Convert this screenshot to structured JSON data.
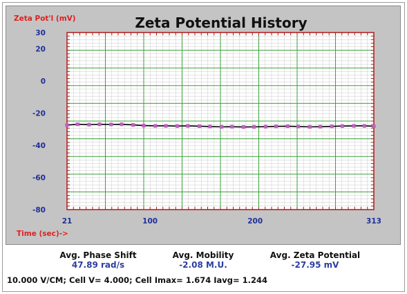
{
  "chart_data": {
    "type": "line",
    "title": "Zeta Potential History",
    "ylabel": "Zeta Pot'l (mV)",
    "xlabel": "Time (sec)->",
    "xlim": [
      21,
      313
    ],
    "ylim": [
      -80,
      30
    ],
    "x_ticks": [
      "21",
      "100",
      "200",
      "313"
    ],
    "y_ticks": [
      "30",
      "20",
      "0",
      "-20",
      "-40",
      "-60",
      "-80"
    ],
    "grid": true,
    "series": [
      {
        "x": [
          21,
          31,
          42,
          52,
          63,
          73,
          84,
          94,
          105,
          115,
          126,
          136,
          147,
          157,
          168,
          178,
          189,
          199,
          210,
          220,
          231,
          241,
          252,
          262,
          273,
          283,
          294,
          304,
          313
        ],
        "y": [
          -27.5,
          -27.0,
          -27.2,
          -27.0,
          -27.1,
          -27.0,
          -27.4,
          -27.8,
          -28.0,
          -28.0,
          -28.1,
          -28.0,
          -28.2,
          -28.4,
          -28.6,
          -28.5,
          -28.7,
          -28.6,
          -28.5,
          -28.3,
          -28.2,
          -28.4,
          -28.6,
          -28.5,
          -28.3,
          -28.1,
          -28.0,
          -28.0,
          -28.2
        ],
        "color": "#000000",
        "marker_color": "#c060c0"
      }
    ],
    "colors": {
      "plot_bg": "#ffffff",
      "major_grid": "#3aa03a",
      "minor_grid": "#c8c8c8",
      "axis_border": "#b01818",
      "tick_label": "#1f2f9a",
      "axis_title": "#e02020",
      "panel_bg": "#c4c4c4"
    }
  },
  "stats": {
    "phase_shift_label": "Avg. Phase Shift",
    "phase_shift_value": "47.89 rad/s",
    "mobility_label": "Avg. Mobility",
    "mobility_value": "-2.08 M.U.",
    "zeta_label": "Avg. Zeta Potential",
    "zeta_value": "-27.95 mV"
  },
  "footer": {
    "text": "10.000 V/CM; Cell V= 4.000; Cell Imax= 1.674 Iavg= 1.244"
  }
}
